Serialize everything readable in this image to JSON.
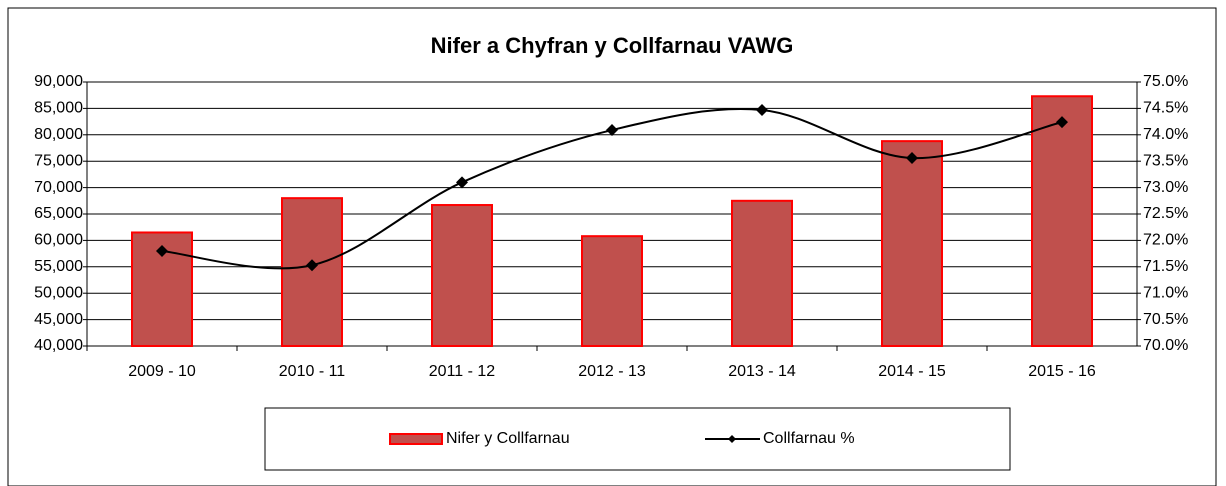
{
  "chart_data": {
    "type": "bar_line",
    "title": "Nifer a Chyfran y Collfarnau VAWG",
    "categories": [
      "2009 - 10",
      "2010 - 11",
      "2011 - 12",
      "2012 - 13",
      "2013 - 14",
      "2014 - 15",
      "2015 - 16"
    ],
    "series": [
      {
        "name": "Nifer y Collfarnau",
        "type": "bar",
        "color": "#c0504d",
        "edge": "#ff0000",
        "values": [
          61500,
          68000,
          66700,
          60800,
          67500,
          78800,
          87300
        ]
      },
      {
        "name": "Collfarnau %",
        "type": "line",
        "axis": "y2",
        "color": "#000000",
        "values": [
          71.8,
          71.53,
          73.1,
          74.09,
          74.47,
          73.56,
          74.24
        ]
      }
    ],
    "ylim": [
      40000,
      90000
    ],
    "yticks": [
      {
        "value": 40000,
        "label": "40,000"
      },
      {
        "value": 45000,
        "label": "45,000"
      },
      {
        "value": 50000,
        "label": "50,000"
      },
      {
        "value": 55000,
        "label": "55,000"
      },
      {
        "value": 60000,
        "label": "60,000"
      },
      {
        "value": 65000,
        "label": "65,000"
      },
      {
        "value": 70000,
        "label": "70,000"
      },
      {
        "value": 75000,
        "label": "75,000"
      },
      {
        "value": 80000,
        "label": "80,000"
      },
      {
        "value": 85000,
        "label": "85,000"
      },
      {
        "value": 90000,
        "label": "90,000"
      }
    ],
    "y2lim": [
      70,
      75
    ],
    "y2ticks": [
      {
        "value": 70,
        "label": "70.0%"
      },
      {
        "value": 70.5,
        "label": "70.5%"
      },
      {
        "value": 71,
        "label": "71.0%"
      },
      {
        "value": 71.5,
        "label": "71.5%"
      },
      {
        "value": 72,
        "label": "72.0%"
      },
      {
        "value": 72.5,
        "label": "72.5%"
      },
      {
        "value": 73,
        "label": "73.0%"
      },
      {
        "value": 73.5,
        "label": "73.5%"
      },
      {
        "value": 74,
        "label": "74.0%"
      },
      {
        "value": 74.5,
        "label": "74.5%"
      },
      {
        "value": 75,
        "label": "75.0%"
      }
    ],
    "grid": true,
    "legend": "bottom"
  }
}
